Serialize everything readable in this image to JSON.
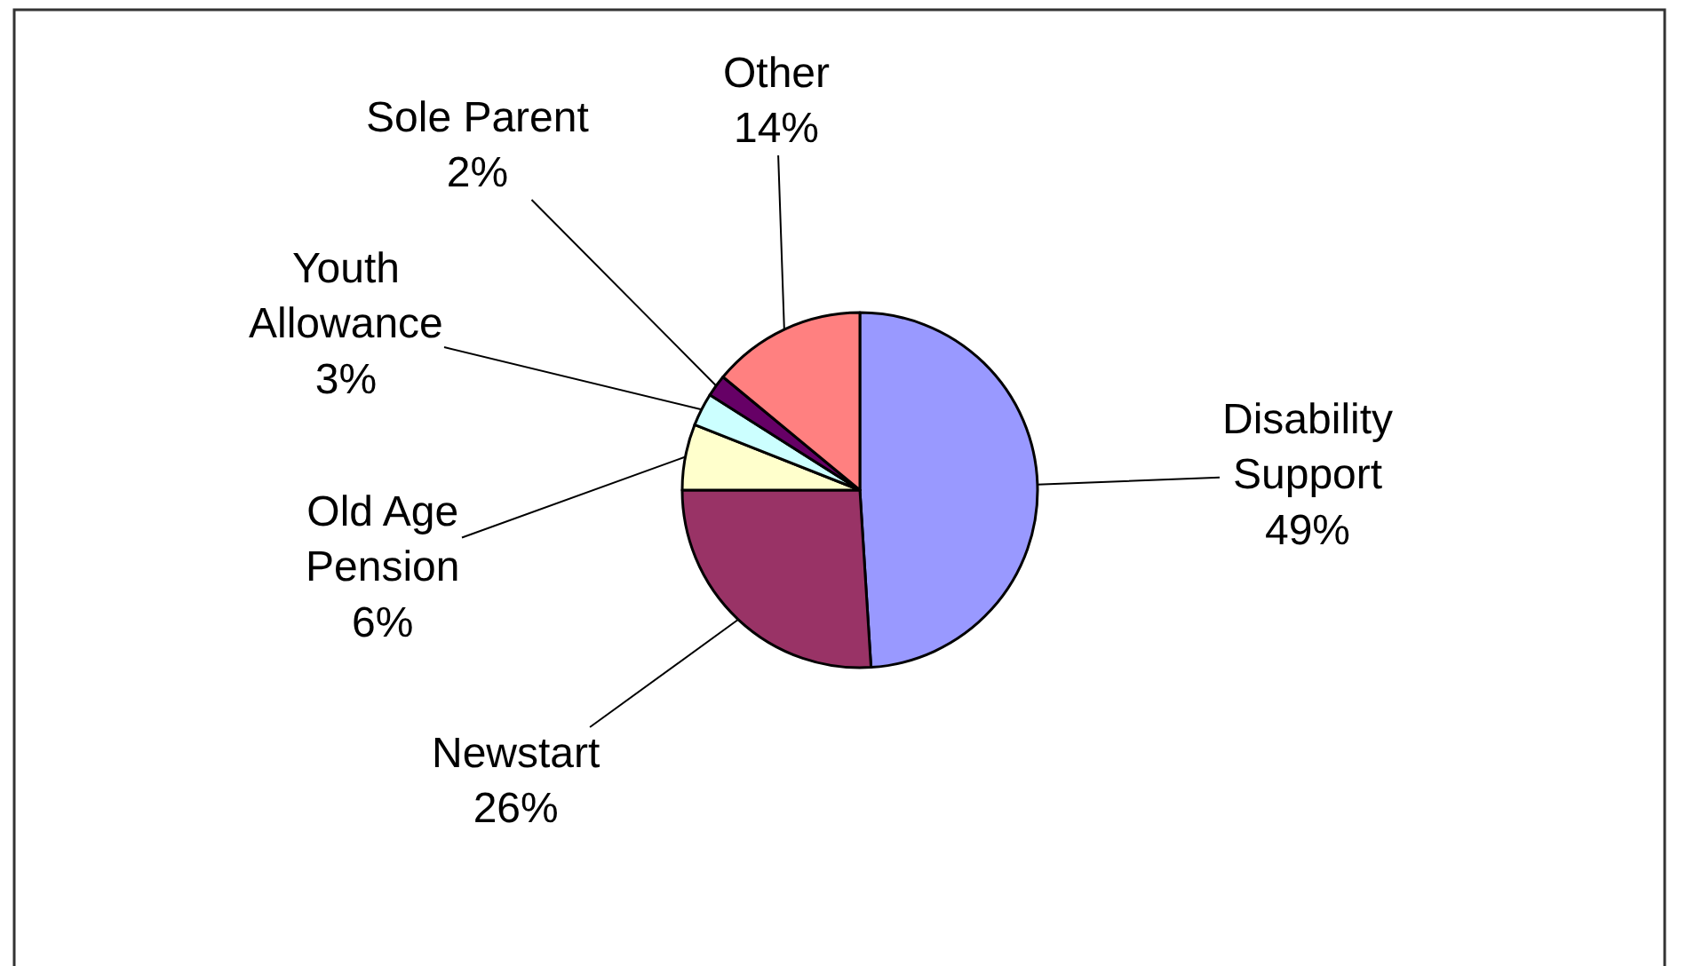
{
  "chart_data": {
    "type": "pie",
    "categories": [
      "Disability Support",
      "Newstart",
      "Old Age Pension",
      "Youth Allowance",
      "Sole Parent",
      "Other"
    ],
    "values": [
      49,
      26,
      6,
      3,
      2,
      14
    ],
    "value_labels": [
      "49%",
      "26%",
      "6%",
      "3%",
      "2%",
      "14%"
    ],
    "colors": [
      "#9999ff",
      "#993366",
      "#ffffcc",
      "#ccffff",
      "#660066",
      "#ff8080"
    ],
    "legend": false
  }
}
